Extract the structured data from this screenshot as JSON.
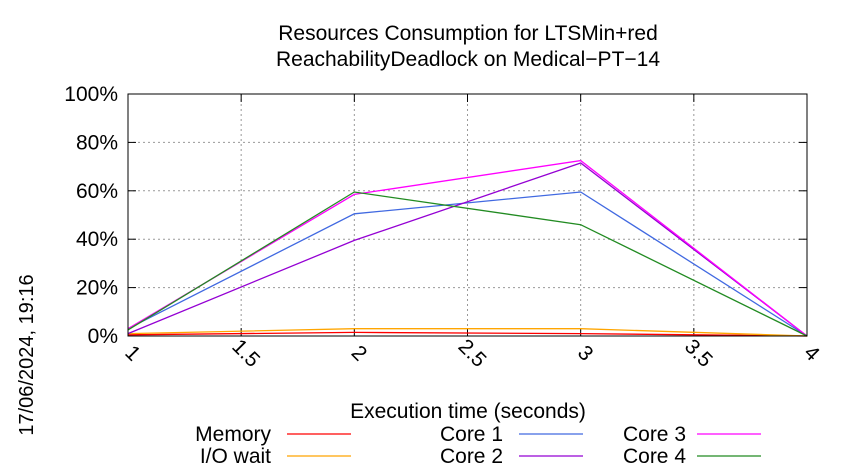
{
  "chart_data": {
    "type": "line",
    "title_line1": "Resources Consumption for LTSMin+red",
    "title_line2": "ReachabilityDeadlock on Medical−PT−14",
    "xlabel": "Execution time (seconds)",
    "ylabel": "",
    "timestamp": "17/06/2024, 19:16",
    "xlim": [
      1,
      4
    ],
    "ylim": [
      0,
      100
    ],
    "x_ticks": [
      "1",
      "1.5",
      "2",
      "2.5",
      "3",
      "3.5",
      "4"
    ],
    "y_ticks": [
      "0%",
      "20%",
      "40%",
      "60%",
      "80%",
      "100%"
    ],
    "grid": true,
    "legend_position": "bottom",
    "x": [
      1,
      2,
      3,
      4
    ],
    "series": [
      {
        "name": "Memory",
        "color": "#ff0000",
        "values": [
          0.5,
          1.5,
          1.0,
          0
        ]
      },
      {
        "name": "I/O wait",
        "color": "#ffa500",
        "values": [
          1.0,
          3.0,
          3.0,
          0
        ]
      },
      {
        "name": "Core 1",
        "color": "#4169e1",
        "values": [
          3,
          50.5,
          59.5,
          0
        ]
      },
      {
        "name": "Core 2",
        "color": "#9400d3",
        "values": [
          1,
          39.5,
          71.5,
          0
        ]
      },
      {
        "name": "Core 3",
        "color": "#ff00ff",
        "values": [
          3,
          58.5,
          72.5,
          0
        ]
      },
      {
        "name": "Core 4",
        "color": "#228b22",
        "values": [
          2.5,
          59.5,
          46,
          0
        ]
      }
    ]
  }
}
